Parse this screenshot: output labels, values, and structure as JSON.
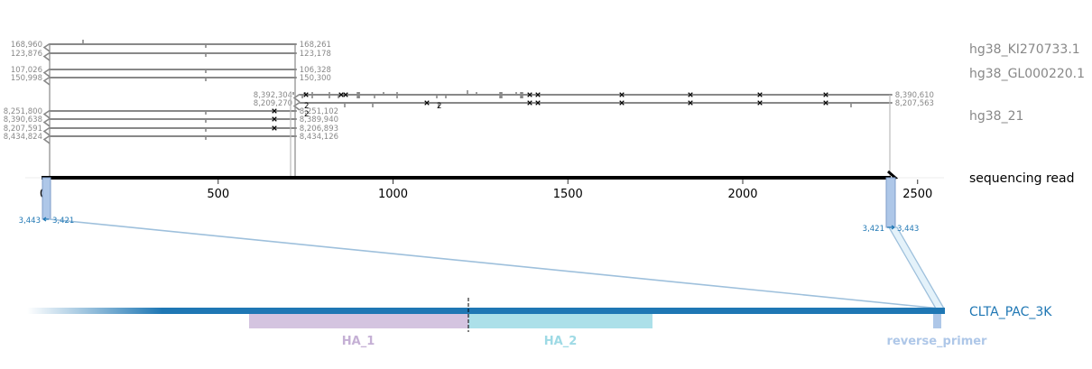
{
  "chart_data": {
    "type": "diagram",
    "axis": {
      "label": "sequencing read",
      "ticks": [
        0,
        500,
        1000,
        1500,
        2000,
        2500
      ],
      "range": [
        0,
        2430
      ]
    },
    "references": [
      {
        "name": "hg38_KI270733.1",
        "color": "#888888"
      },
      {
        "name": "hg38_GL000220.1",
        "color": "#888888"
      },
      {
        "name": "hg38_21",
        "color": "#888888"
      }
    ],
    "alignments": [
      {
        "group": 0,
        "read_start": 0,
        "read_end": 722,
        "left_label": "168,960",
        "right_label": "168,261"
      },
      {
        "group": 0,
        "read_start": 0,
        "read_end": 722,
        "left_label": "123,876",
        "right_label": "123,178"
      },
      {
        "group": 1,
        "read_start": 0,
        "read_end": 722,
        "left_label": "107,026",
        "right_label": "106,328"
      },
      {
        "group": 1,
        "read_start": 0,
        "read_end": 722,
        "left_label": "150,998",
        "right_label": "150,300"
      },
      {
        "group": 2,
        "read_start": 715,
        "read_end": 2425,
        "left_label": "8,392,304",
        "right_label": "8,390,610"
      },
      {
        "group": 2,
        "read_start": 715,
        "read_end": 2425,
        "left_label": "8,209,270",
        "right_label": "8,207,563"
      },
      {
        "group": 2,
        "read_start": 0,
        "read_end": 722,
        "left_label": "8,251,800",
        "right_label": "8,251,102"
      },
      {
        "group": 2,
        "read_start": 0,
        "read_end": 722,
        "left_label": "8,390,638",
        "right_label": "8,389,940"
      },
      {
        "group": 2,
        "read_start": 0,
        "read_end": 722,
        "left_label": "8,207,591",
        "right_label": "8,206,893"
      },
      {
        "group": 2,
        "read_start": 0,
        "read_end": 722,
        "left_label": "8,434,824",
        "right_label": "8,434,126"
      }
    ],
    "insertion_labels": [
      "2",
      "2",
      "2"
    ],
    "target": {
      "name": "CLTA_PAC_3K",
      "color": "#1f77b4",
      "features": [
        {
          "name": "HA_1",
          "color": "#c5b0d5"
        },
        {
          "name": "HA_2",
          "color": "#9edae5"
        },
        {
          "name": "reverse_primer",
          "color": "#aec7e8"
        }
      ]
    },
    "target_alignments": [
      {
        "read_start": 0,
        "read_end": 22,
        "left_label": "3,443",
        "right_label": "3,421"
      },
      {
        "read_start": 2425,
        "read_end": 2447,
        "left_label": "3,421",
        "right_label": "3,443"
      }
    ]
  }
}
